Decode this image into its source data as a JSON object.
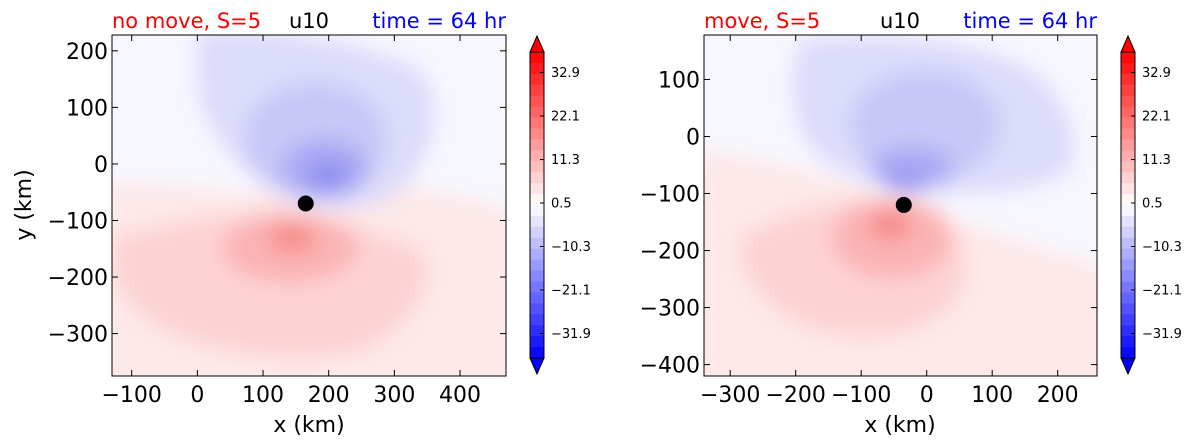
{
  "figure": {
    "panels": [
      {
        "title_left": "no move, S=5",
        "title_center": "u10",
        "title_right": "time = 64 hr",
        "xlabel": "x (km)",
        "ylabel": "y (km)"
      },
      {
        "title_left": "move, S=5",
        "title_center": "u10",
        "title_right": "time = 64 hr",
        "xlabel": "x (km)",
        "ylabel": ""
      }
    ],
    "colors": {
      "title_left": "#ff0000",
      "title_center": "#000000",
      "title_right": "#0000ff",
      "marker": "#000000"
    }
  },
  "chart_data": [
    {
      "type": "heatmap",
      "variable": "u10",
      "title": "no move, S=5   u10   time = 64 hr",
      "xlabel": "x (km)",
      "ylabel": "y (km)",
      "xlim": [
        -130,
        470
      ],
      "ylim": [
        -375,
        228
      ],
      "x_ticks": [
        -100,
        0,
        100,
        200,
        300,
        400
      ],
      "y_ticks": [
        -300,
        -200,
        -100,
        0,
        100,
        200
      ],
      "center_marker": {
        "x": 165,
        "y": -70
      },
      "colorscale": "bwr",
      "color_range": [
        -38,
        38
      ],
      "colorbar_ticks": [
        "32.9",
        "22.1",
        "11.3",
        "0.5",
        "−10.3",
        "−21.1",
        "−31.9"
      ],
      "features": [
        {
          "kind": "min",
          "x": 210,
          "y": -20,
          "value": -14
        },
        {
          "kind": "max",
          "x": 145,
          "y": -125,
          "value": 16
        }
      ]
    },
    {
      "type": "heatmap",
      "variable": "u10",
      "title": "move, S=5   u10   time = 64 hr",
      "xlabel": "x (km)",
      "ylabel": "",
      "xlim": [
        -340,
        260
      ],
      "ylim": [
        -420,
        178
      ],
      "x_ticks": [
        -300,
        -200,
        -100,
        0,
        100,
        200
      ],
      "y_ticks": [
        -400,
        -300,
        -200,
        -100,
        0,
        100
      ],
      "center_marker": {
        "x": -35,
        "y": -120
      },
      "colorscale": "bwr",
      "color_range": [
        -38,
        38
      ],
      "colorbar_ticks": [
        "32.9",
        "22.1",
        "11.3",
        "0.5",
        "−10.3",
        "−21.1",
        "−31.9"
      ],
      "features": [
        {
          "kind": "min",
          "x": -30,
          "y": -75,
          "value": -13
        },
        {
          "kind": "max",
          "x": -45,
          "y": -170,
          "value": 14
        }
      ]
    }
  ]
}
